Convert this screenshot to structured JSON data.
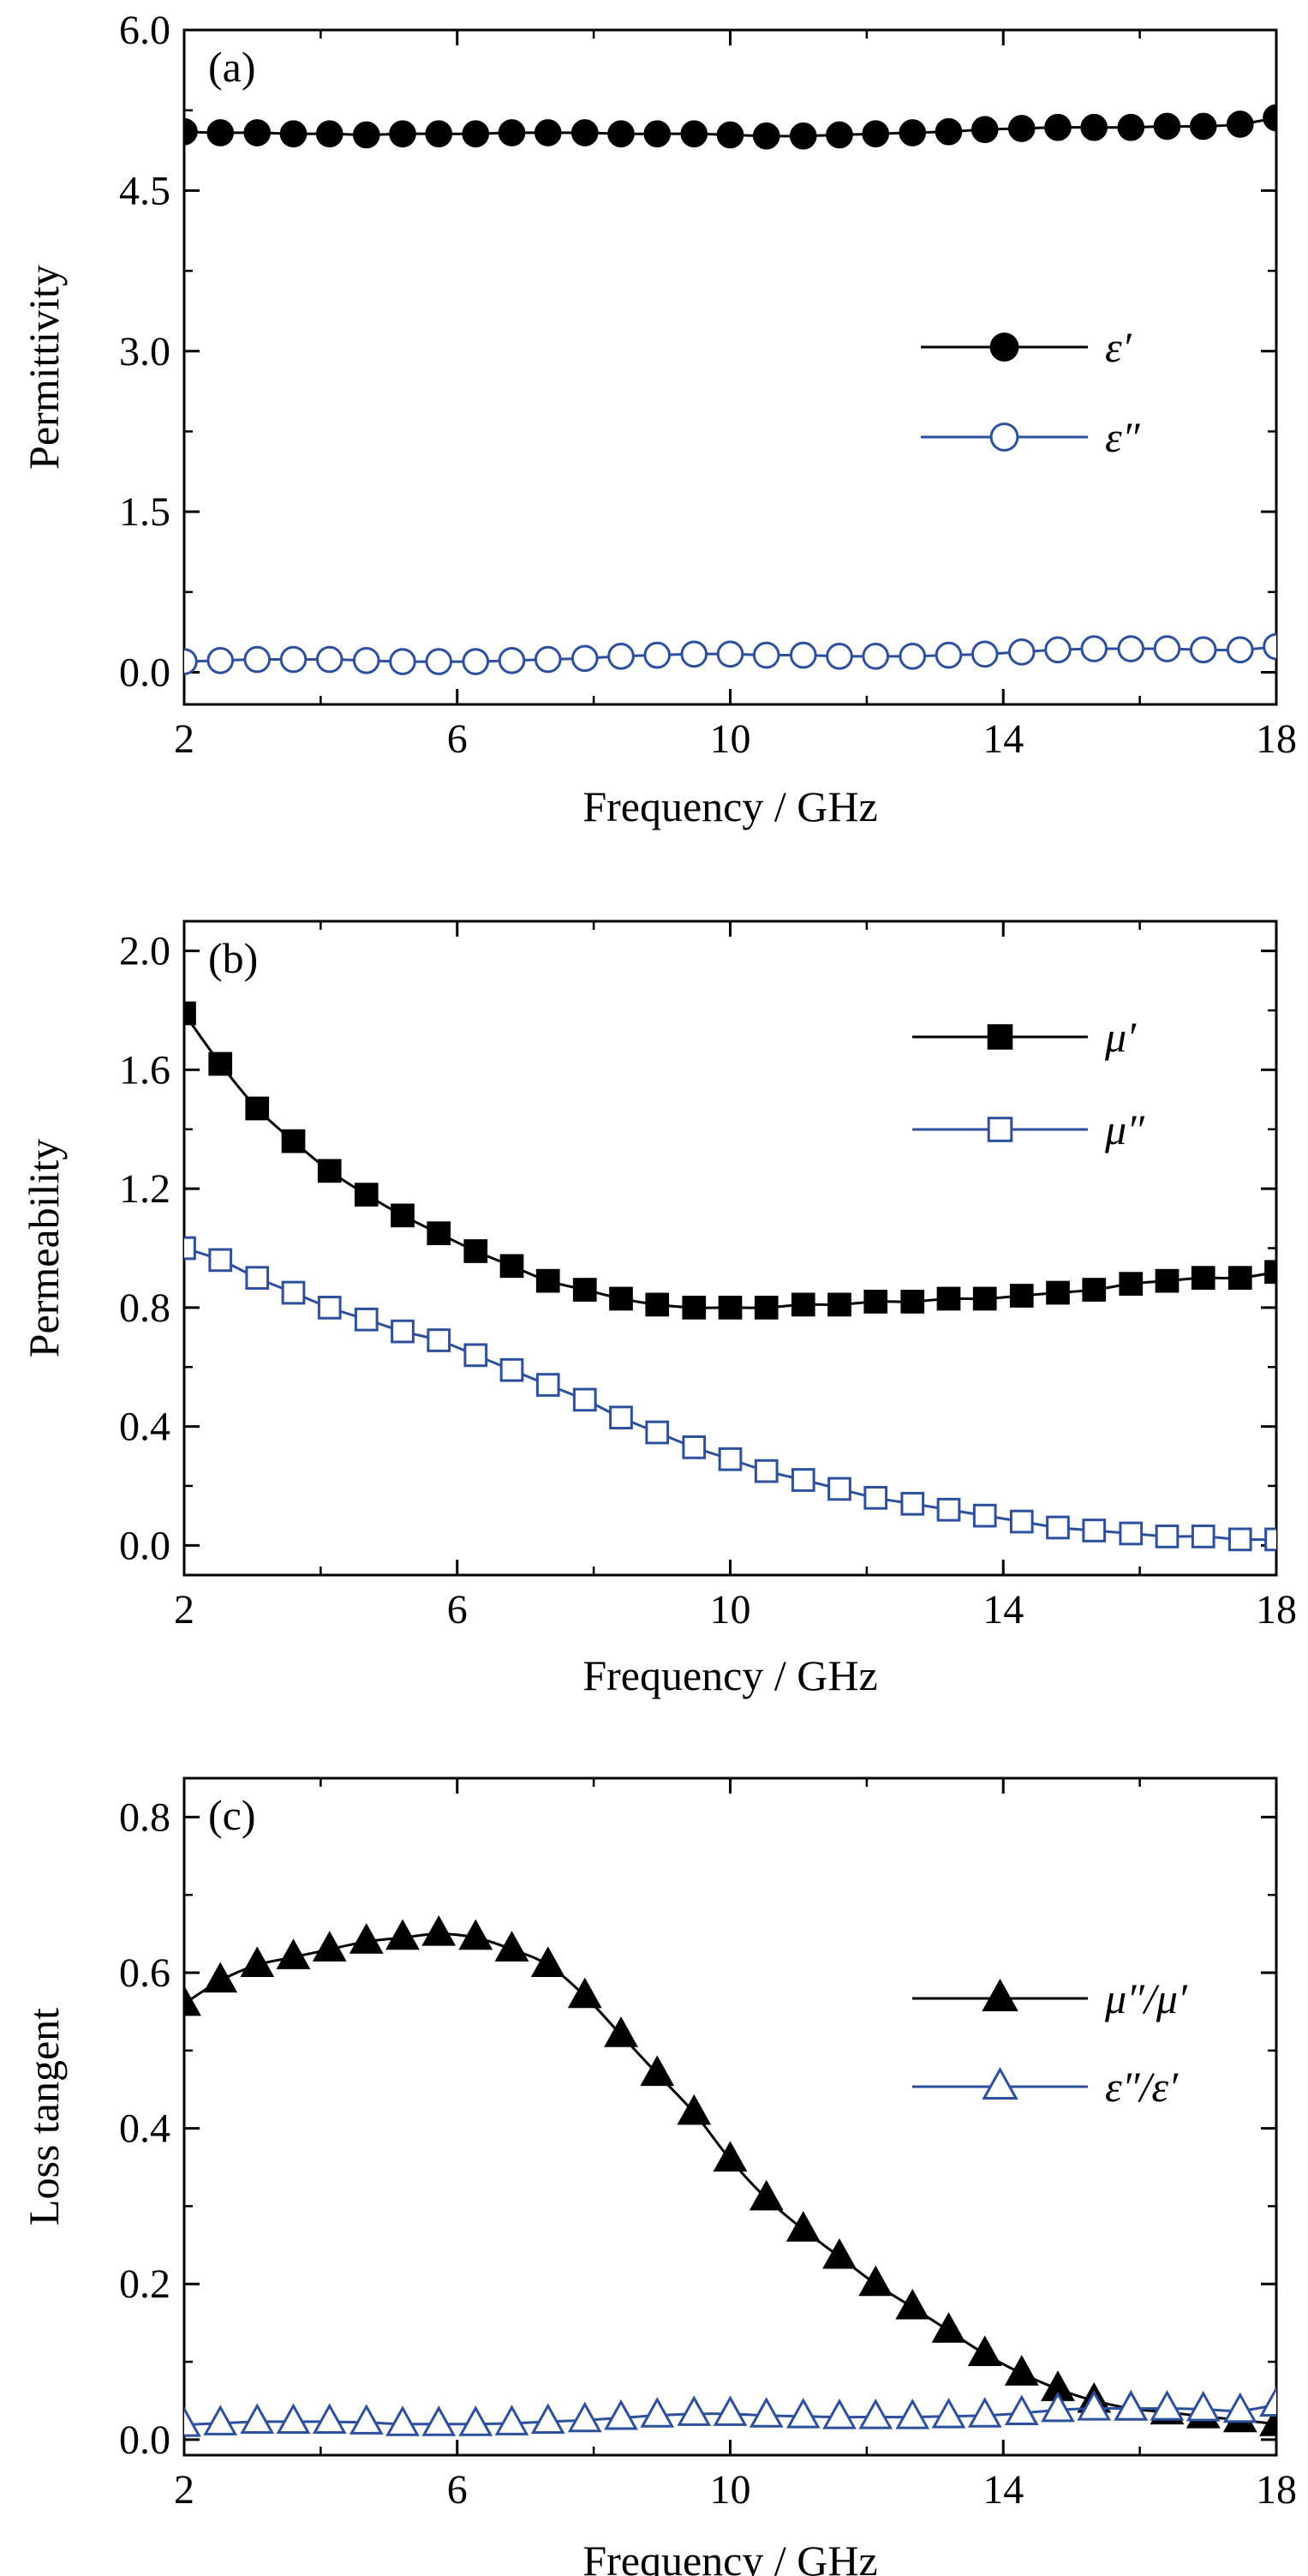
{
  "chart_data": [
    {
      "type": "line",
      "panel": "(a)",
      "xlabel": "Frequency / GHz",
      "ylabel": "Permittivity",
      "xlim": [
        2,
        18
      ],
      "ylim": [
        -0.3,
        6.0
      ],
      "xticks": [
        "2",
        "6",
        "10",
        "14",
        "18"
      ],
      "yticks": [
        "0.0",
        "1.5",
        "3.0",
        "4.5",
        "6.0"
      ],
      "legend_position": "center-right",
      "series": [
        {
          "name": "ε′",
          "marker": "circle",
          "filled": true,
          "color": "#000000",
          "x": [
            2,
            2.53,
            3.07,
            3.6,
            4.13,
            4.67,
            5.2,
            5.73,
            6.27,
            6.8,
            7.33,
            7.87,
            8.4,
            8.93,
            9.47,
            10,
            10.53,
            11.07,
            11.6,
            12.13,
            12.67,
            13.2,
            13.73,
            14.27,
            14.8,
            15.33,
            15.87,
            16.4,
            16.93,
            17.47,
            18
          ],
          "values": [
            5.05,
            5.04,
            5.04,
            5.03,
            5.03,
            5.02,
            5.03,
            5.03,
            5.03,
            5.04,
            5.04,
            5.04,
            5.03,
            5.03,
            5.03,
            5.02,
            5.01,
            5.01,
            5.02,
            5.03,
            5.04,
            5.05,
            5.07,
            5.08,
            5.09,
            5.09,
            5.09,
            5.1,
            5.1,
            5.12,
            5.18
          ]
        },
        {
          "name": "ε″",
          "marker": "circle",
          "filled": false,
          "color": "#2c4f9e",
          "x": [
            2,
            2.53,
            3.07,
            3.6,
            4.13,
            4.67,
            5.2,
            5.73,
            6.27,
            6.8,
            7.33,
            7.87,
            8.4,
            8.93,
            9.47,
            10,
            10.53,
            11.07,
            11.6,
            12.13,
            12.67,
            13.2,
            13.73,
            14.27,
            14.8,
            15.33,
            15.87,
            16.4,
            16.93,
            17.47,
            18
          ],
          "values": [
            0.1,
            0.11,
            0.12,
            0.12,
            0.12,
            0.11,
            0.1,
            0.1,
            0.1,
            0.11,
            0.12,
            0.13,
            0.15,
            0.16,
            0.17,
            0.17,
            0.16,
            0.16,
            0.15,
            0.15,
            0.15,
            0.16,
            0.17,
            0.19,
            0.21,
            0.22,
            0.22,
            0.22,
            0.21,
            0.21,
            0.24
          ]
        }
      ]
    },
    {
      "type": "line",
      "panel": "(b)",
      "xlabel": "Frequency / GHz",
      "ylabel": "Permeability",
      "xlim": [
        2,
        18
      ],
      "ylim": [
        -0.1,
        2.1
      ],
      "xticks": [
        "2",
        "6",
        "10",
        "14",
        "18"
      ],
      "yticks": [
        "0.0",
        "0.4",
        "0.8",
        "1.2",
        "1.6",
        "2.0"
      ],
      "legend_position": "top-right",
      "series": [
        {
          "name": "μ′",
          "marker": "square",
          "filled": true,
          "color": "#000000",
          "x": [
            2,
            2.53,
            3.07,
            3.6,
            4.13,
            4.67,
            5.2,
            5.73,
            6.27,
            6.8,
            7.33,
            7.87,
            8.4,
            8.93,
            9.47,
            10,
            10.53,
            11.07,
            11.6,
            12.13,
            12.67,
            13.2,
            13.73,
            14.27,
            14.8,
            15.33,
            15.87,
            16.4,
            16.93,
            17.47,
            18
          ],
          "values": [
            1.79,
            1.62,
            1.47,
            1.36,
            1.26,
            1.18,
            1.11,
            1.05,
            0.99,
            0.94,
            0.89,
            0.86,
            0.83,
            0.81,
            0.8,
            0.8,
            0.8,
            0.81,
            0.81,
            0.82,
            0.82,
            0.83,
            0.83,
            0.84,
            0.85,
            0.86,
            0.88,
            0.89,
            0.9,
            0.9,
            0.92
          ]
        },
        {
          "name": "μ″",
          "marker": "square",
          "filled": false,
          "color": "#2c4f9e",
          "x": [
            2,
            2.53,
            3.07,
            3.6,
            4.13,
            4.67,
            5.2,
            5.73,
            6.27,
            6.8,
            7.33,
            7.87,
            8.4,
            8.93,
            9.47,
            10,
            10.53,
            11.07,
            11.6,
            12.13,
            12.67,
            13.2,
            13.73,
            14.27,
            14.8,
            15.33,
            15.87,
            16.4,
            16.93,
            17.47,
            18
          ],
          "values": [
            1.0,
            0.96,
            0.9,
            0.85,
            0.8,
            0.76,
            0.72,
            0.69,
            0.64,
            0.59,
            0.54,
            0.49,
            0.43,
            0.38,
            0.33,
            0.29,
            0.25,
            0.22,
            0.19,
            0.16,
            0.14,
            0.12,
            0.1,
            0.08,
            0.06,
            0.05,
            0.04,
            0.03,
            0.03,
            0.02,
            0.02
          ]
        }
      ]
    },
    {
      "type": "line",
      "panel": "(c)",
      "xlabel": "Frequency / GHz",
      "ylabel": "Loss tangent",
      "xlim": [
        2,
        18
      ],
      "ylim": [
        -0.02,
        0.85
      ],
      "xticks": [
        "2",
        "6",
        "10",
        "14",
        "18"
      ],
      "yticks": [
        "0.0",
        "0.2",
        "0.4",
        "0.6",
        "0.8"
      ],
      "legend_position": "center-right",
      "series": [
        {
          "name": "μ″/μ′",
          "marker": "triangle",
          "filled": true,
          "color": "#000000",
          "x": [
            2,
            2.53,
            3.07,
            3.6,
            4.13,
            4.67,
            5.2,
            5.73,
            6.27,
            6.8,
            7.33,
            7.87,
            8.4,
            8.93,
            9.47,
            10,
            10.53,
            11.07,
            11.6,
            12.13,
            12.67,
            13.2,
            13.73,
            14.27,
            14.8,
            15.33,
            15.87,
            16.4,
            16.93,
            17.47,
            18
          ],
          "values": [
            0.56,
            0.59,
            0.61,
            0.62,
            0.63,
            0.64,
            0.645,
            0.65,
            0.645,
            0.63,
            0.61,
            0.57,
            0.52,
            0.47,
            0.42,
            0.36,
            0.31,
            0.27,
            0.235,
            0.2,
            0.17,
            0.14,
            0.11,
            0.085,
            0.065,
            0.05,
            0.04,
            0.035,
            0.03,
            0.025,
            0.02
          ]
        },
        {
          "name": "ε″/ε′",
          "marker": "triangle",
          "filled": false,
          "color": "#2c4f9e",
          "x": [
            2,
            2.53,
            3.07,
            3.6,
            4.13,
            4.67,
            5.2,
            5.73,
            6.27,
            6.8,
            7.33,
            7.87,
            8.4,
            8.93,
            9.47,
            10,
            10.53,
            11.07,
            11.6,
            12.13,
            12.67,
            13.2,
            13.73,
            14.27,
            14.8,
            15.33,
            15.87,
            16.4,
            16.93,
            17.47,
            18
          ],
          "values": [
            0.019,
            0.021,
            0.023,
            0.023,
            0.023,
            0.022,
            0.02,
            0.02,
            0.02,
            0.021,
            0.023,
            0.025,
            0.028,
            0.031,
            0.033,
            0.033,
            0.031,
            0.03,
            0.029,
            0.029,
            0.029,
            0.03,
            0.031,
            0.034,
            0.038,
            0.04,
            0.04,
            0.04,
            0.039,
            0.037,
            0.045
          ]
        }
      ]
    }
  ]
}
